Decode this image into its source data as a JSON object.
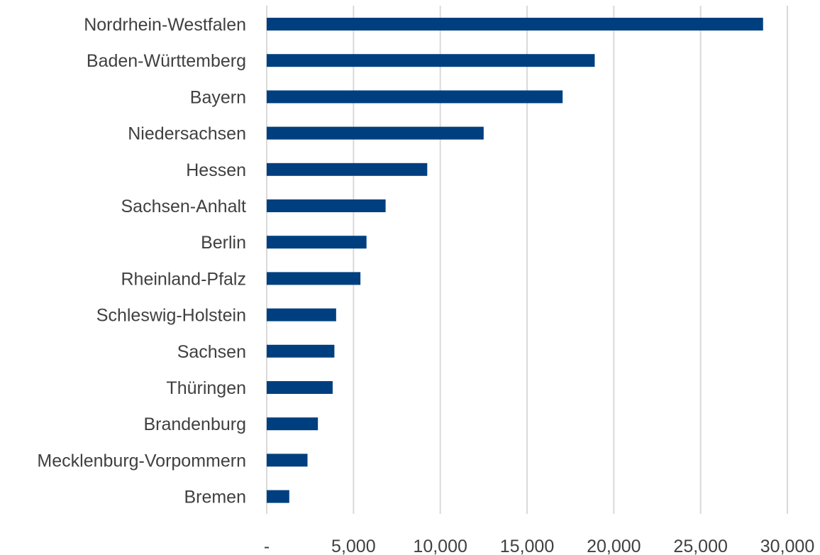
{
  "chart_data": {
    "type": "bar",
    "orientation": "horizontal",
    "categories": [
      "Nordrhein-Westfalen",
      "Baden-Württemberg",
      "Bayern",
      "Niedersachsen",
      "Hessen",
      "Sachsen-Anhalt",
      "Berlin",
      "Rheinland-Pfalz",
      "Schleswig-Holstein",
      "Sachsen",
      "Thüringen",
      "Brandenburg",
      "Mecklenburg-Vorpommern",
      "Bremen"
    ],
    "values": [
      28600,
      18900,
      17050,
      12500,
      9250,
      6850,
      5750,
      5400,
      4000,
      3900,
      3800,
      2950,
      2350,
      1300
    ],
    "xlim": [
      0,
      30000
    ],
    "ticks": [
      0,
      5000,
      10000,
      15000,
      20000,
      25000,
      30000
    ],
    "tick_labels": [
      "-",
      "5,000",
      "10,000",
      "15,000",
      "20,000",
      "25,000",
      "30,000"
    ],
    "grid": "vertical",
    "legend": "none",
    "bar_color": "#003f7f",
    "grid_color": "#d9d9d9",
    "text_color": "#404040"
  }
}
